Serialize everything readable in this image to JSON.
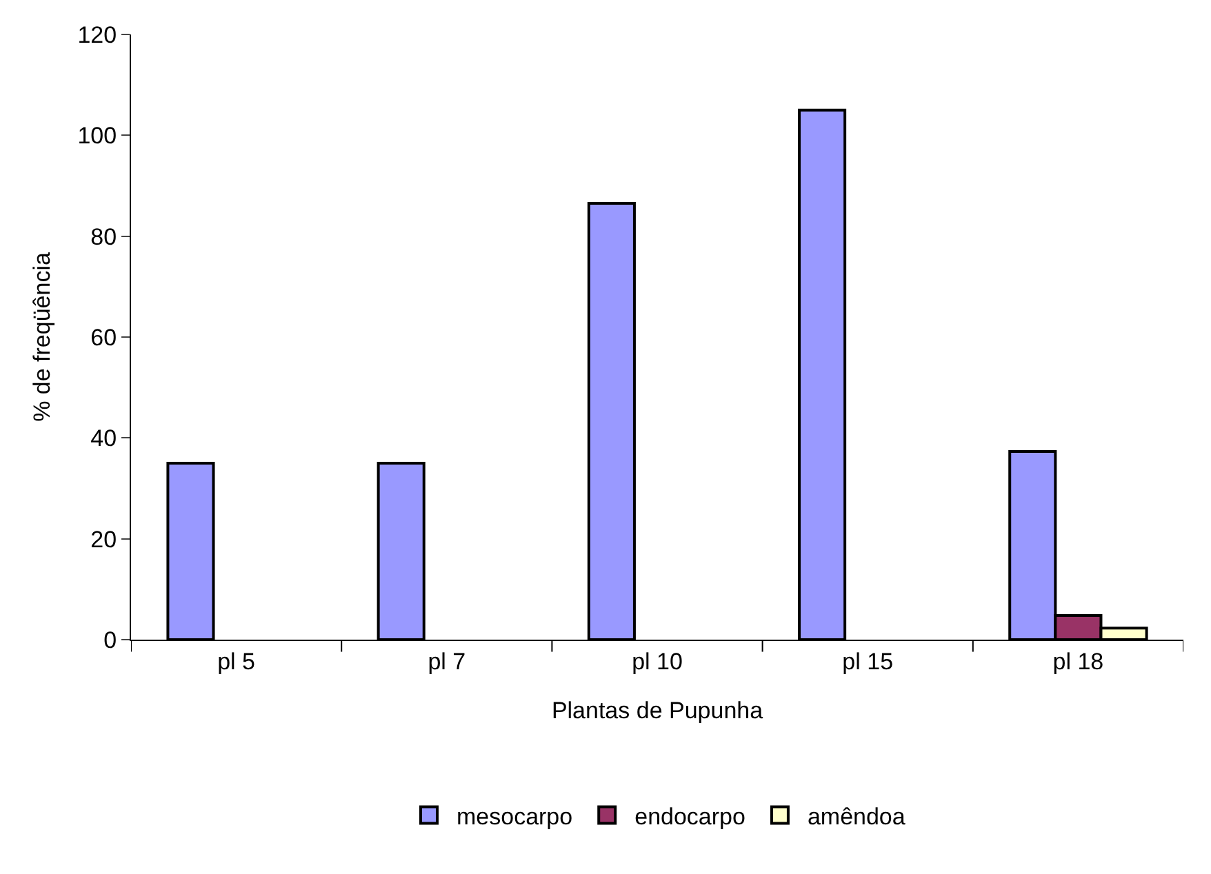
{
  "chart_data": {
    "type": "bar",
    "xlabel": "Plantas de Pupunha",
    "ylabel": "% de freqüência",
    "categories": [
      "pl 5",
      "pl 7",
      "pl 10",
      "pl 15",
      "pl 18"
    ],
    "series": [
      {
        "name": "mesocarpo",
        "color": "#9999ff",
        "values": [
          35,
          35,
          86.5,
          105,
          37.3
        ]
      },
      {
        "name": "endocarpo",
        "color": "#993366",
        "values": [
          null,
          null,
          null,
          null,
          4.8
        ]
      },
      {
        "name": "amêndoa",
        "color": "#ffffcc",
        "values": [
          null,
          null,
          null,
          null,
          2.3
        ]
      }
    ],
    "ylim": [
      0,
      120
    ],
    "yticks": [
      0,
      20,
      40,
      60,
      80,
      100,
      120
    ],
    "grid": false,
    "legend": "bottom"
  }
}
